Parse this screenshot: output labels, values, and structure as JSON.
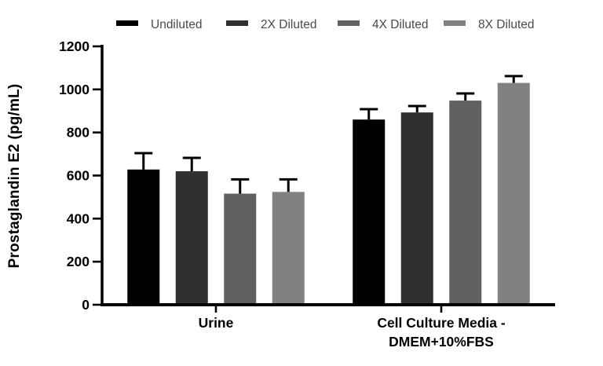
{
  "figure": {
    "background": "#ffffff",
    "text_color": "#000000",
    "legend_text_color": "#4a4a4a"
  },
  "chart_data": {
    "type": "bar",
    "title": "",
    "xlabel": "",
    "ylabel": "Prostaglandin E2 (pg/mL)",
    "ylim": [
      0,
      1200
    ],
    "y_ticks": [
      0,
      200,
      400,
      600,
      800,
      1000,
      1200
    ],
    "grid": false,
    "legend_position": "top",
    "categories": [
      "Urine",
      "Cell Culture Media - DMEM+10%FBS"
    ],
    "categories_lines": [
      [
        "Urine"
      ],
      [
        "Cell Culture Media -",
        "DMEM+10%FBS"
      ]
    ],
    "series": [
      {
        "name": "Undiluted",
        "color": "#000000",
        "values": [
          628,
          860
        ],
        "errors_plus": [
          76,
          48
        ]
      },
      {
        "name": "2X Diluted",
        "color": "#303030",
        "values": [
          620,
          893
        ],
        "errors_plus": [
          62,
          30
        ]
      },
      {
        "name": "4X Diluted",
        "color": "#616161",
        "values": [
          516,
          948
        ],
        "errors_plus": [
          66,
          33
        ]
      },
      {
        "name": "8X Diluted",
        "color": "#818181",
        "values": [
          524,
          1030
        ],
        "errors_plus": [
          58,
          32
        ]
      }
    ]
  }
}
